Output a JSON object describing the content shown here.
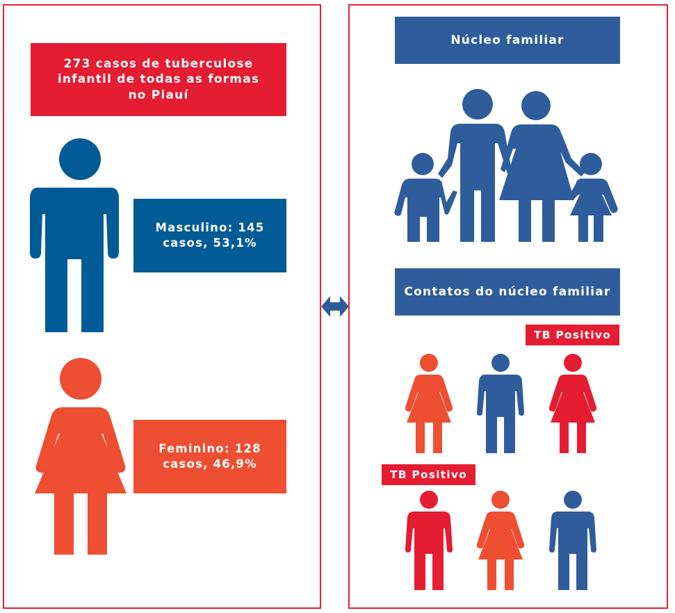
{
  "left": {
    "title": "273 casos de tuberculose\ninfantil de todas as formas\nno Piauí",
    "male_label": "Masculino: 145\ncasos, 53,1%",
    "female_label": "Feminino: 128\ncasos, 46,9%"
  },
  "right": {
    "family_title": "Núcleo familiar",
    "contacts_title": "Contatos do núcleo familiar",
    "tb_positive_label_1": "TB Positivo",
    "tb_positive_label_2": "TB Positivo"
  },
  "colors": {
    "red": "#e41d32",
    "blue": "#2f5d9b",
    "dark_blue": "#005b96",
    "orange": "#ee4e32"
  }
}
